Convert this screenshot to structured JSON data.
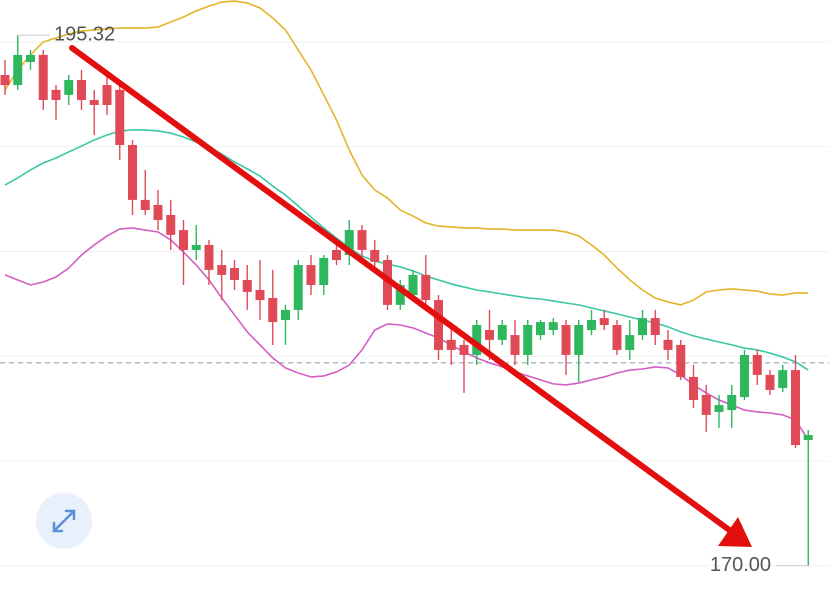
{
  "chart_data": {
    "type": "candlestick",
    "categories": [
      null,
      null,
      null,
      null,
      null,
      null,
      null,
      null,
      null,
      null,
      null,
      null,
      null,
      null,
      null,
      null,
      null,
      null,
      null,
      null,
      null,
      null,
      null,
      null,
      null,
      null,
      null,
      null,
      null,
      null,
      null,
      null,
      null,
      null,
      null,
      null,
      null,
      null,
      null,
      null,
      null,
      null,
      null,
      null,
      null,
      null,
      null,
      null,
      null,
      null,
      null,
      null,
      null,
      null,
      null,
      null,
      null,
      null,
      null,
      null,
      null,
      null,
      null,
      null
    ],
    "open": [
      193.42,
      192.94,
      194.04,
      194.38,
      192.71,
      192.47,
      193.18,
      192.23,
      192.94,
      192.71,
      190.08,
      187.46,
      187.22,
      186.74,
      186.02,
      185.07,
      185.31,
      184.35,
      184.21,
      183.64,
      183.16,
      182.78,
      181.73,
      182.21,
      184.35,
      183.4,
      185.07,
      184.83,
      186.02,
      185.07,
      184.59,
      182.45,
      182.92,
      183.88,
      182.68,
      180.78,
      180.54,
      180.06,
      181.25,
      180.78,
      181.01,
      180.06,
      181.01,
      181.25,
      181.49,
      180.06,
      181.25,
      181.82,
      181.49,
      180.3,
      181.01,
      181.82,
      180.78,
      180.54,
      179.01,
      178.15,
      177.34,
      177.43,
      178.05,
      180.06,
      179.11,
      178.48,
      179.34,
      176.0
    ],
    "high": [
      194.14,
      195.32,
      194.61,
      194.61,
      192.94,
      193.42,
      193.66,
      192.71,
      193.42,
      193.18,
      190.32,
      188.89,
      187.93,
      187.46,
      186.5,
      186.26,
      185.55,
      185.07,
      184.59,
      184.35,
      184.59,
      184.12,
      182.45,
      184.59,
      184.83,
      184.83,
      185.31,
      186.5,
      186.26,
      185.55,
      184.83,
      183.64,
      184.12,
      184.83,
      182.92,
      181.49,
      180.78,
      181.73,
      182.21,
      181.73,
      181.73,
      181.73,
      181.73,
      181.82,
      181.73,
      181.73,
      182.21,
      182.21,
      181.73,
      181.73,
      182.21,
      182.21,
      181.25,
      180.78,
      179.58,
      178.63,
      178.15,
      178.63,
      180.3,
      180.3,
      179.34,
      179.58,
      180.06,
      176.48
    ],
    "low": [
      192.47,
      192.71,
      193.66,
      191.75,
      191.27,
      191.99,
      191.75,
      190.56,
      191.51,
      189.36,
      186.74,
      186.74,
      186.02,
      185.07,
      183.4,
      184.59,
      183.4,
      182.68,
      183.16,
      182.21,
      181.73,
      180.54,
      180.54,
      181.73,
      182.92,
      182.92,
      184.35,
      184.35,
      184.59,
      184.12,
      182.21,
      182.21,
      182.68,
      182.45,
      179.82,
      179.58,
      178.25,
      179.58,
      179.82,
      180.54,
      179.58,
      179.58,
      180.78,
      181.01,
      179.11,
      178.77,
      181.01,
      181.25,
      180.06,
      179.82,
      180.78,
      180.54,
      179.82,
      178.87,
      177.53,
      176.39,
      176.58,
      176.58,
      177.91,
      178.63,
      178.15,
      178.29,
      175.62,
      170.0
    ],
    "close": [
      192.94,
      194.38,
      194.38,
      192.23,
      192.23,
      193.18,
      192.23,
      191.99,
      191.99,
      190.08,
      187.46,
      186.98,
      186.5,
      185.79,
      185.07,
      185.31,
      184.12,
      183.88,
      183.64,
      183.07,
      182.68,
      181.63,
      182.21,
      184.35,
      183.4,
      184.69,
      184.59,
      186.02,
      185.07,
      184.5,
      182.45,
      183.4,
      183.88,
      182.68,
      180.3,
      180.3,
      180.06,
      181.49,
      180.78,
      181.49,
      180.06,
      181.49,
      181.63,
      181.63,
      180.06,
      181.49,
      181.73,
      181.49,
      180.3,
      181.01,
      181.82,
      181.01,
      180.3,
      179.01,
      177.91,
      177.2,
      177.67,
      178.15,
      180.06,
      179.11,
      178.39,
      179.34,
      175.76,
      176.24
    ],
    "up_color": "#2fb75e",
    "down_color": "#e04a57",
    "overlays": [
      {
        "color": "#e4b42a",
        "values": [
          192.71,
          193.66,
          194.38,
          195.0,
          195.19,
          195.38,
          195.52,
          195.57,
          195.62,
          195.66,
          195.66,
          195.66,
          195.71,
          195.95,
          196.19,
          196.48,
          196.71,
          196.9,
          196.95,
          196.86,
          196.62,
          196.14,
          195.57,
          194.61,
          193.66,
          192.47,
          191.27,
          189.84,
          188.65,
          187.93,
          187.55,
          186.98,
          186.69,
          186.36,
          186.21,
          186.17,
          186.12,
          186.12,
          186.07,
          186.07,
          186.02,
          186.02,
          186.02,
          186.02,
          185.93,
          185.74,
          185.31,
          184.83,
          184.21,
          183.64,
          183.16,
          182.78,
          182.59,
          182.45,
          182.68,
          183.07,
          183.16,
          183.21,
          183.16,
          183.11,
          182.97,
          182.92,
          183.02,
          183.02
        ]
      },
      {
        "color": "#3cc8a6",
        "values": [
          188.17,
          188.51,
          188.89,
          189.22,
          189.46,
          189.75,
          190.03,
          190.32,
          190.56,
          190.75,
          190.8,
          190.8,
          190.75,
          190.65,
          190.46,
          190.22,
          189.99,
          189.65,
          189.27,
          188.94,
          188.6,
          188.12,
          187.69,
          187.17,
          186.64,
          186.12,
          185.64,
          185.17,
          184.78,
          184.54,
          184.4,
          184.26,
          184.07,
          183.83,
          183.64,
          183.45,
          183.3,
          183.16,
          183.07,
          182.97,
          182.87,
          182.78,
          182.73,
          182.64,
          182.54,
          182.45,
          182.3,
          182.16,
          182.02,
          181.87,
          181.73,
          181.59,
          181.4,
          181.16,
          180.97,
          180.82,
          180.68,
          180.54,
          180.39,
          180.3,
          180.15,
          179.96,
          179.73,
          179.34
        ]
      },
      {
        "color": "#d25fc4",
        "values": [
          183.88,
          183.64,
          183.4,
          183.54,
          183.78,
          184.21,
          184.83,
          185.31,
          185.74,
          186.07,
          186.12,
          186.02,
          185.93,
          185.55,
          184.97,
          184.35,
          183.64,
          182.78,
          181.97,
          181.16,
          180.54,
          179.92,
          179.44,
          179.2,
          179.01,
          179.06,
          179.25,
          179.58,
          180.3,
          181.25,
          181.54,
          181.49,
          181.35,
          181.11,
          180.87,
          180.54,
          180.2,
          179.92,
          179.68,
          179.49,
          179.25,
          179.06,
          178.87,
          178.68,
          178.63,
          178.72,
          178.87,
          179.01,
          179.2,
          179.34,
          179.39,
          179.49,
          179.44,
          179.11,
          178.63,
          178.25,
          177.91,
          177.67,
          177.43,
          177.34,
          177.29,
          177.2,
          176.96,
          176.0
        ]
      }
    ],
    "price_line": 179.68,
    "high_label": "195.32",
    "low_label": "170.00",
    "ylim": [
      168.7,
      197.0
    ],
    "gridlines": [
      195,
      190,
      185,
      180,
      175,
      170
    ]
  }
}
